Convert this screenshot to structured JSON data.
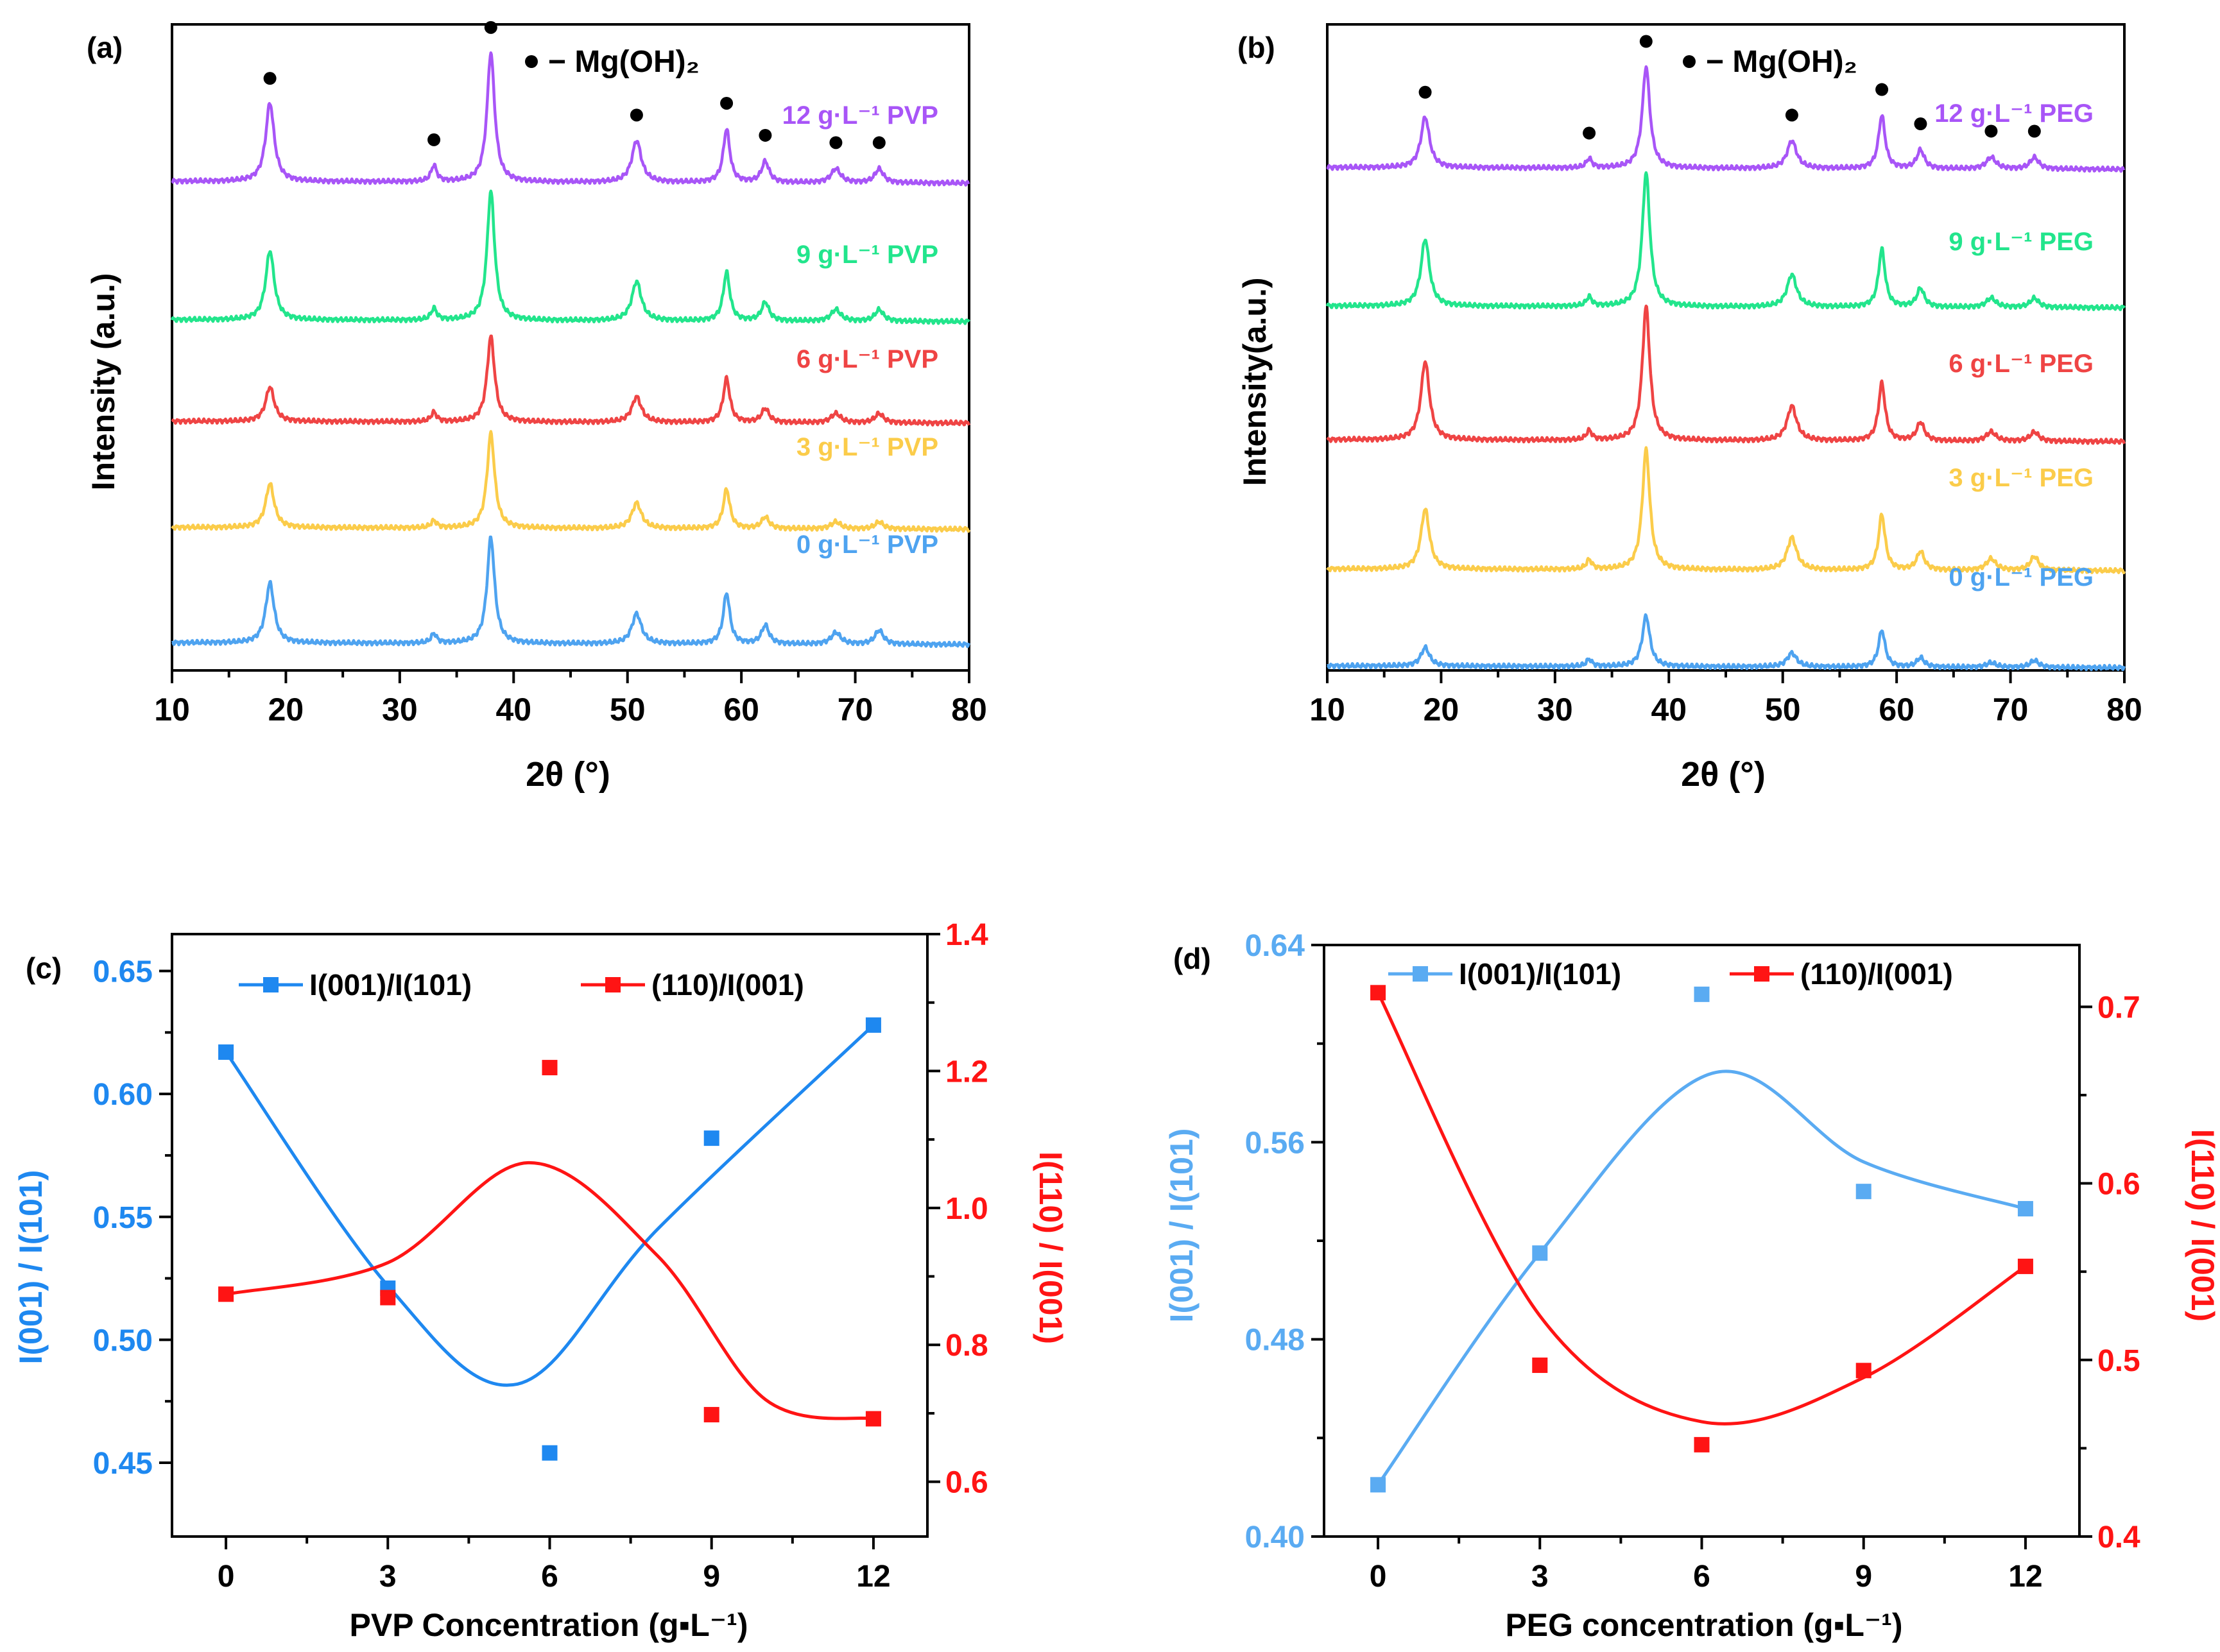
{
  "colors": {
    "axis": "#000000",
    "purple": "#a855f7",
    "green": "#22e58c",
    "red_pattern": "#ef4444",
    "yellow": "#fbcc4a",
    "blue_pattern": "#4ea3f0",
    "blue_c": "#1e88f0",
    "blue_d": "#5aabf2",
    "red_ratio": "#ff1414"
  },
  "chart_data": [
    {
      "panel": "(a)",
      "type": "line",
      "subtype": "stacked-xrd-patterns",
      "xlabel": "2θ (°)",
      "ylabel": "Intensity (a.u.)",
      "xlim": [
        10,
        80
      ],
      "xticks": [
        "10",
        "20",
        "30",
        "40",
        "50",
        "60",
        "70",
        "80"
      ],
      "legend": {
        "marker": "●",
        "label": "− Mg(OH)₂"
      },
      "marker_positions": [
        18.6,
        33.0,
        38.0,
        50.8,
        58.7,
        62.1,
        68.3,
        72.1
      ],
      "peaks": [
        {
          "pos": 18.6,
          "width": 0.45
        },
        {
          "pos": 33.0,
          "width": 0.3
        },
        {
          "pos": 38.0,
          "width": 0.4
        },
        {
          "pos": 50.8,
          "width": 0.5
        },
        {
          "pos": 58.7,
          "width": 0.35
        },
        {
          "pos": 62.1,
          "width": 0.4
        },
        {
          "pos": 68.3,
          "width": 0.5
        },
        {
          "pos": 72.1,
          "width": 0.45
        }
      ],
      "series": [
        {
          "name": "12 g·L⁻¹ PVP",
          "color": "#a855f7",
          "offset": 10.6,
          "heights": [
            1.7,
            0.35,
            2.8,
            0.9,
            1.15,
            0.45,
            0.3,
            0.3
          ]
        },
        {
          "name": "9 g·L⁻¹ PVP",
          "color": "#22e58c",
          "offset": 7.6,
          "heights": [
            1.5,
            0.25,
            2.8,
            0.85,
            1.05,
            0.4,
            0.25,
            0.25
          ]
        },
        {
          "name": "6 g·L⁻¹ PVP",
          "color": "#ef4444",
          "offset": 5.4,
          "heights": [
            0.75,
            0.2,
            1.85,
            0.55,
            0.95,
            0.3,
            0.2,
            0.2
          ]
        },
        {
          "name": "3 g·L⁻¹ PVP",
          "color": "#fbcc4a",
          "offset": 3.1,
          "heights": [
            0.95,
            0.15,
            2.05,
            0.55,
            0.85,
            0.25,
            0.15,
            0.15
          ]
        },
        {
          "name": "0 g·L⁻¹ PVP",
          "color": "#4ea3f0",
          "offset": 0.6,
          "heights": [
            1.3,
            0.2,
            2.3,
            0.65,
            1.1,
            0.4,
            0.25,
            0.3
          ]
        }
      ]
    },
    {
      "panel": "(b)",
      "type": "line",
      "subtype": "stacked-xrd-patterns",
      "xlabel": "2θ (°)",
      "ylabel": "Intensity(a.u.)",
      "xlim": [
        10,
        80
      ],
      "xticks": [
        "10",
        "20",
        "30",
        "40",
        "50",
        "60",
        "70",
        "80"
      ],
      "legend": {
        "marker": "●",
        "label": "− Mg(OH)₂"
      },
      "marker_positions": [
        18.6,
        33.0,
        38.0,
        50.8,
        58.7,
        62.1,
        68.3,
        72.1
      ],
      "peaks": [
        {
          "pos": 18.6,
          "width": 0.45
        },
        {
          "pos": 33.0,
          "width": 0.3
        },
        {
          "pos": 38.0,
          "width": 0.4
        },
        {
          "pos": 50.8,
          "width": 0.5
        },
        {
          "pos": 58.7,
          "width": 0.35
        },
        {
          "pos": 62.1,
          "width": 0.4
        },
        {
          "pos": 68.3,
          "width": 0.5
        },
        {
          "pos": 72.1,
          "width": 0.45
        }
      ],
      "series": [
        {
          "name": "12 g·L⁻¹ PEG",
          "color": "#a855f7",
          "offset": 10.9,
          "heights": [
            1.1,
            0.2,
            2.2,
            0.6,
            1.15,
            0.4,
            0.25,
            0.25
          ]
        },
        {
          "name": "9 g·L⁻¹ PEG",
          "color": "#22e58c",
          "offset": 7.9,
          "heights": [
            1.45,
            0.2,
            2.9,
            0.7,
            1.25,
            0.4,
            0.2,
            0.2
          ]
        },
        {
          "name": "6 g·L⁻¹ PEG",
          "color": "#ef4444",
          "offset": 5.0,
          "heights": [
            1.7,
            0.2,
            2.9,
            0.75,
            1.25,
            0.4,
            0.2,
            0.2
          ]
        },
        {
          "name": "3 g·L⁻¹ PEG",
          "color": "#fbcc4a",
          "offset": 2.2,
          "heights": [
            1.3,
            0.2,
            2.6,
            0.7,
            1.2,
            0.4,
            0.25,
            0.3
          ]
        },
        {
          "name": "0 g·L⁻¹ PEG",
          "color": "#4ea3f0",
          "offset": 0.1,
          "heights": [
            0.4,
            0.15,
            1.1,
            0.3,
            0.8,
            0.2,
            0.1,
            0.15
          ]
        }
      ]
    },
    {
      "panel": "(c)",
      "type": "scatter",
      "xlabel": "PVP Concentration (g▪L⁻¹)",
      "xlim": [
        -1.0,
        13.0
      ],
      "xticks": [
        0,
        3,
        6,
        9,
        12
      ],
      "y_left": {
        "label": "I(001) / I(101)",
        "lim": [
          0.42,
          0.665
        ],
        "ticks": [
          0.45,
          0.5,
          0.55,
          0.6,
          0.65
        ],
        "tick_labels": [
          "0.45",
          "0.50",
          "0.55",
          "0.60",
          "0.65"
        ]
      },
      "y_right": {
        "label": "I(110) / I(001)",
        "lim": [
          0.52,
          1.4
        ],
        "ticks": [
          0.6,
          0.8,
          1.0,
          1.2,
          1.4
        ],
        "tick_labels": [
          "0.6",
          "0.8",
          "1.0",
          "1.2",
          "1.4"
        ]
      },
      "series": [
        {
          "name": "I(001)/I(101)",
          "axis": "left",
          "color": "#1e88f0",
          "x": [
            0,
            3,
            6,
            9,
            12
          ],
          "values": [
            0.617,
            0.521,
            0.454,
            0.582,
            0.628
          ],
          "fit": {
            "x": [
              0,
              3,
              5.4,
              8,
              12
            ],
            "y": [
              0.617,
              0.522,
              0.482,
              0.545,
              0.628
            ]
          }
        },
        {
          "name": "(110)/I(001)",
          "axis": "right",
          "color": "#ff1414",
          "x": [
            0,
            3,
            6,
            9,
            12
          ],
          "values": [
            0.874,
            0.869,
            1.205,
            0.698,
            0.692
          ],
          "fit": {
            "x": [
              0,
              3,
              5.6,
              8,
              10,
              12
            ],
            "y": [
              0.874,
              0.92,
              1.066,
              0.93,
              0.72,
              0.692
            ]
          }
        }
      ]
    },
    {
      "panel": "(d)",
      "type": "scatter",
      "xlabel": "PEG concentration (g▪L⁻¹)",
      "xlim": [
        -1.0,
        13.0
      ],
      "xticks": [
        0,
        3,
        6,
        9,
        12
      ],
      "y_left": {
        "label": "I(001) / I(101)",
        "lim": [
          0.4,
          0.64
        ],
        "ticks": [
          0.4,
          0.48,
          0.56,
          0.64
        ],
        "tick_labels": [
          "0.40",
          "0.48",
          "0.56",
          "0.64"
        ]
      },
      "y_right": {
        "label": "I(110) / I(001)",
        "lim": [
          0.4,
          0.735
        ],
        "ticks": [
          0.4,
          0.5,
          0.6,
          0.7
        ],
        "tick_labels": [
          "0.4",
          "0.5",
          "0.6",
          "0.7"
        ]
      },
      "series": [
        {
          "name": "I(001)/I(101)",
          "axis": "left",
          "color": "#5aabf2",
          "x": [
            0,
            3,
            6,
            9,
            12
          ],
          "values": [
            0.421,
            0.515,
            0.62,
            0.54,
            0.533
          ],
          "fit": {
            "x": [
              0,
              3,
              6.2,
              9,
              12
            ],
            "y": [
              0.421,
              0.515,
              0.588,
              0.552,
              0.533
            ]
          }
        },
        {
          "name": "(110)/I(001)",
          "axis": "right",
          "color": "#ff1414",
          "x": [
            0,
            3,
            6,
            9,
            12
          ],
          "values": [
            0.708,
            0.497,
            0.452,
            0.494,
            0.553
          ],
          "fit": {
            "x": [
              0,
              3,
              6,
              9,
              12
            ],
            "y": [
              0.708,
              0.525,
              0.465,
              0.49,
              0.553
            ]
          }
        }
      ]
    }
  ]
}
